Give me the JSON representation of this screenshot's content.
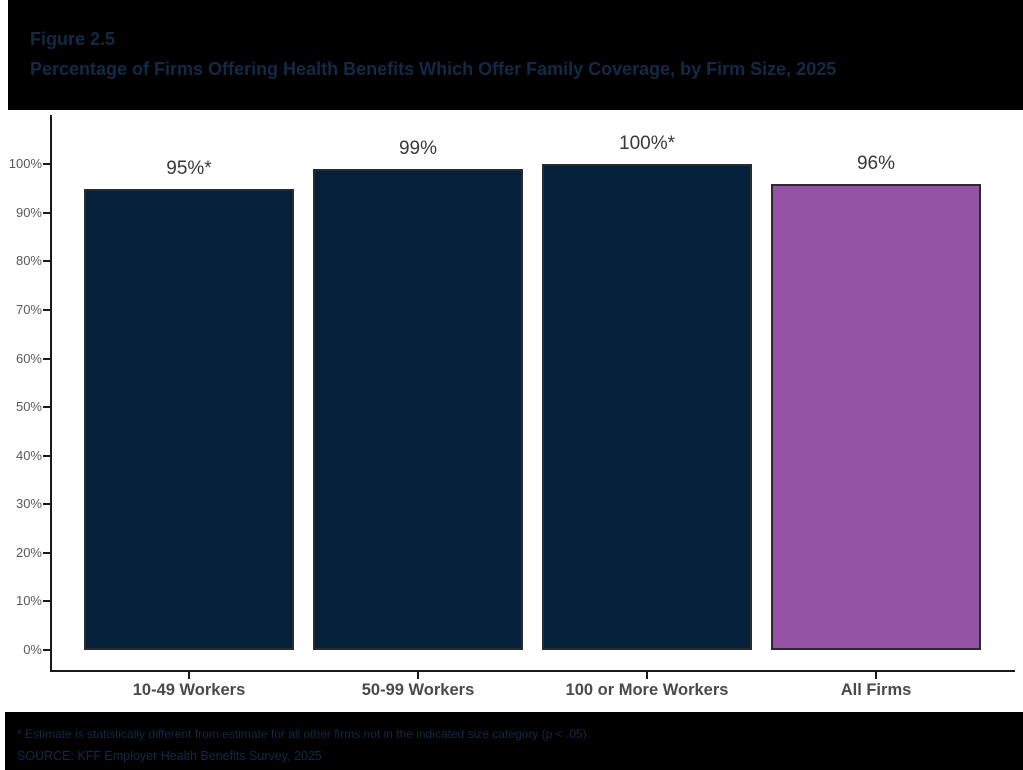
{
  "header": {
    "figure_label": "Figure 2.5",
    "title": "Percentage of Firms Offering Health Benefits Which Offer Family Coverage, by Firm Size, 2025"
  },
  "chart_data": {
    "type": "bar",
    "title": "Percentage of Firms Offering Health Benefits Which Offer Family Coverage, by Firm Size, 2025",
    "categories": [
      "10-49 Workers",
      "50-99 Workers",
      "100 or More Workers",
      "All Firms"
    ],
    "values": [
      95,
      99,
      100,
      96
    ],
    "bar_labels": [
      "95%*",
      "99%",
      "100%*",
      "96%"
    ],
    "bar_colors": [
      "#04203a",
      "#04203a",
      "#04203a",
      "#9452a5"
    ],
    "xlabel": "",
    "ylabel": "",
    "ylim": [
      0,
      100
    ],
    "y_tick_labels": [
      "0%",
      "10%",
      "20%",
      "30%",
      "40%",
      "50%",
      "60%",
      "70%",
      "80%",
      "90%",
      "100%"
    ],
    "grid": false,
    "legend": "none"
  },
  "footer": {
    "footnote": "* Estimate is statistically different from estimate for all other firms not in the indicated size category (p < .05).",
    "source": "SOURCE: KFF Employer Health Benefits Survey, 2025"
  },
  "colors": {
    "header_background": "#000000",
    "header_text": "#122a46",
    "bar_navy": "#04203a",
    "bar_purple": "#9452a5",
    "bar_border": "#2b2b2b",
    "axis_line": "#1a1a1a",
    "tick_label": "#595959",
    "category_label": "#4a4a4a",
    "value_label": "#383838",
    "footer_text": "#122a46"
  }
}
